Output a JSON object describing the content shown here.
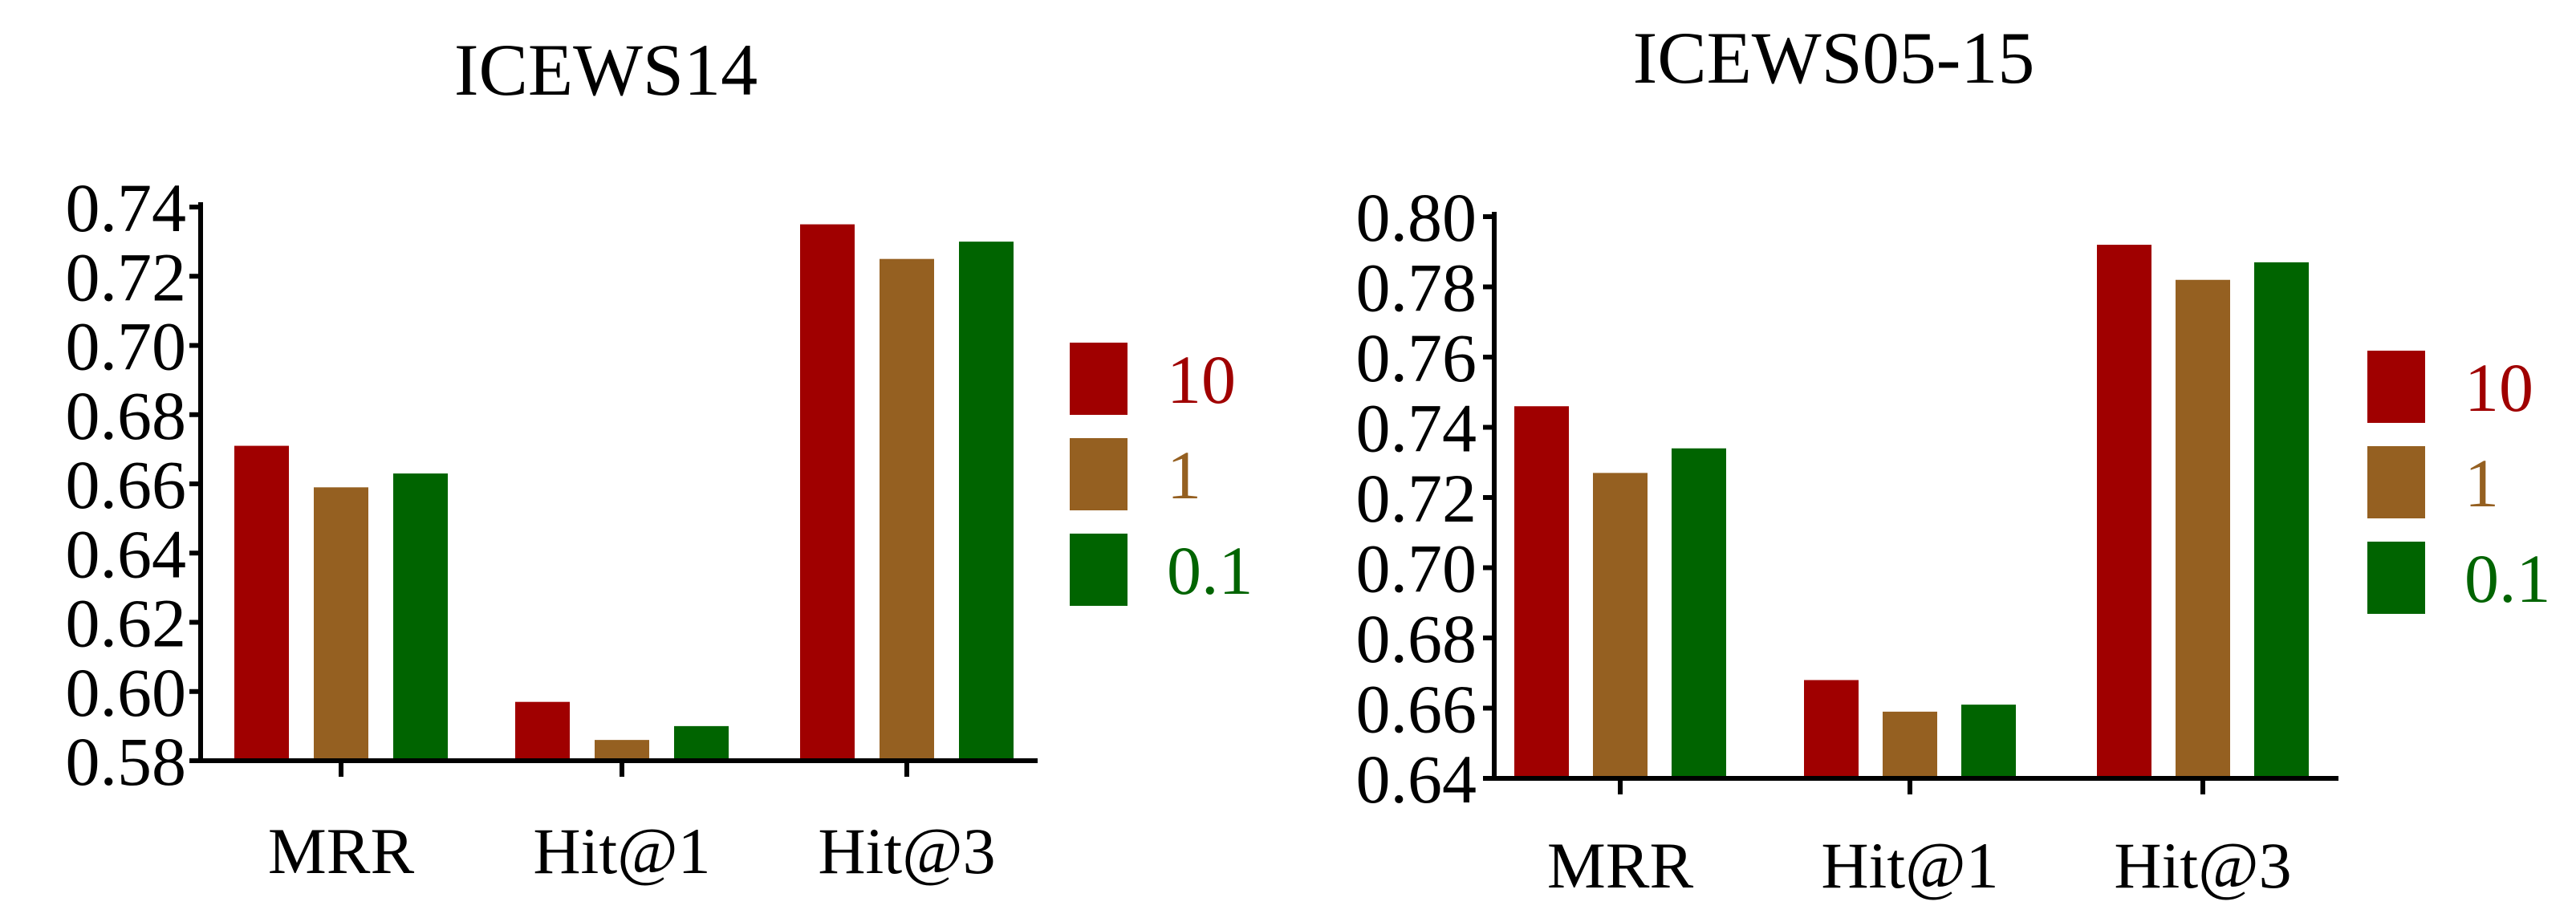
{
  "chart_data": [
    {
      "type": "bar",
      "title": "ICEWS14",
      "xlabel": "",
      "ylabel": "",
      "categories": [
        "MRR",
        "Hit@1",
        "Hit@3"
      ],
      "ylim": [
        0.58,
        0.74
      ],
      "yticks": [
        "0.58",
        "0.60",
        "0.62",
        "0.64",
        "0.66",
        "0.68",
        "0.70",
        "0.72",
        "0.74"
      ],
      "grid": false,
      "legend_position": "right",
      "series": [
        {
          "name": "10",
          "color": "#a00000",
          "values": [
            0.671,
            0.597,
            0.735
          ]
        },
        {
          "name": "1",
          "color": "#956021",
          "values": [
            0.659,
            0.586,
            0.725
          ]
        },
        {
          "name": "0.1",
          "color": "#006400",
          "values": [
            0.663,
            0.59,
            0.73
          ]
        }
      ]
    },
    {
      "type": "bar",
      "title": "ICEWS05-15",
      "xlabel": "",
      "ylabel": "",
      "categories": [
        "MRR",
        "Hit@1",
        "Hit@3"
      ],
      "ylim": [
        0.64,
        0.8
      ],
      "yticks": [
        "0.64",
        "0.66",
        "0.68",
        "0.70",
        "0.72",
        "0.74",
        "0.76",
        "0.78",
        "0.80"
      ],
      "grid": false,
      "legend_position": "right",
      "series": [
        {
          "name": "10",
          "color": "#a00000",
          "values": [
            0.746,
            0.668,
            0.792
          ]
        },
        {
          "name": "1",
          "color": "#956021",
          "values": [
            0.727,
            0.659,
            0.782
          ]
        },
        {
          "name": "0.1",
          "color": "#006400",
          "values": [
            0.734,
            0.661,
            0.787
          ]
        }
      ]
    }
  ]
}
